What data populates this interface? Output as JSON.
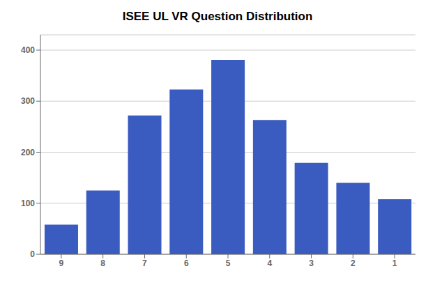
{
  "chart_data": {
    "type": "bar",
    "title": "ISEE UL VR Question Distribution",
    "categories": [
      9,
      8,
      7,
      6,
      5,
      4,
      3,
      2,
      1
    ],
    "values": [
      58,
      125,
      272,
      323,
      381,
      263,
      179,
      140,
      108
    ],
    "color": "#3a5bbf",
    "ylim": [
      0,
      430
    ],
    "yticks": [
      0,
      100,
      200,
      300,
      400
    ],
    "grid": true
  }
}
